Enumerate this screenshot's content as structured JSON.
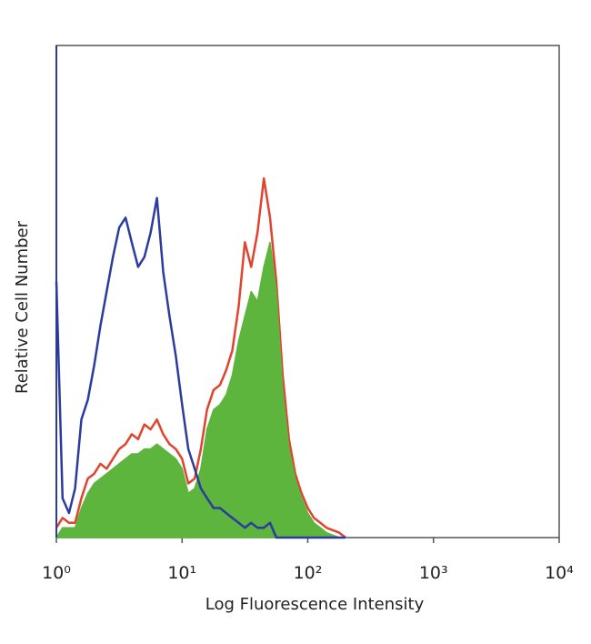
{
  "chart_data": {
    "type": "line",
    "x_label": "Log Fluorescence Intensity",
    "y_label": "Relative Cell Number",
    "xscale": "log",
    "xlim": [
      1,
      10000
    ],
    "ylim": [
      0,
      100
    ],
    "xticks": [
      {
        "value": 1,
        "label": "10⁰"
      },
      {
        "value": 10,
        "label": "10¹"
      },
      {
        "value": 100,
        "label": "10²"
      },
      {
        "value": 1000,
        "label": "10³"
      },
      {
        "value": 10000,
        "label": "10⁴"
      }
    ],
    "x": [
      1,
      1.12,
      1.26,
      1.41,
      1.58,
      1.78,
      2,
      2.24,
      2.51,
      2.82,
      3.16,
      3.55,
      3.98,
      4.47,
      5.01,
      5.62,
      6.31,
      7.08,
      7.94,
      8.91,
      10,
      11.2,
      12.6,
      14.1,
      15.8,
      17.8,
      20,
      22.4,
      25.1,
      28.2,
      31.6,
      35.5,
      39.8,
      44.7,
      50.1,
      56.2,
      63.1,
      70.8,
      79.4,
      89.1,
      100,
      112,
      126,
      141,
      158,
      178,
      200
    ],
    "series": [
      {
        "color": "#e0442e",
        "fill": false,
        "values": [
          2,
          4,
          3,
          3,
          8,
          12,
          13,
          15,
          14,
          16,
          18,
          19,
          21,
          20,
          23,
          22,
          24,
          21,
          19,
          18,
          16,
          11,
          12,
          18,
          26,
          30,
          31,
          34,
          38,
          47,
          60,
          55,
          62,
          73,
          65,
          52,
          33,
          20,
          13,
          9,
          6,
          4,
          3,
          2,
          1.5,
          1,
          0
        ]
      },
      {
        "color": "#5db53e",
        "fill": true,
        "values": [
          0,
          2,
          2,
          2,
          6,
          9,
          11,
          12,
          13,
          14,
          15,
          16,
          17,
          17,
          18,
          18,
          19,
          18,
          17,
          16,
          14,
          9,
          10,
          14,
          22,
          26,
          27,
          29,
          33,
          40,
          45,
          50,
          48,
          55,
          60,
          50,
          30,
          18,
          12,
          8,
          5,
          3,
          2,
          1,
          0.5,
          0,
          0
        ]
      },
      {
        "color": "#2b3c9e",
        "fill": false,
        "values": [
          52,
          8,
          5,
          10,
          24,
          28,
          35,
          43,
          50,
          57,
          63,
          65,
          60,
          55,
          57,
          62,
          69,
          54,
          45,
          37,
          27,
          18,
          14,
          10,
          8,
          6,
          6,
          5,
          4,
          3,
          2,
          3,
          2,
          2,
          3,
          0,
          0,
          0,
          0,
          0,
          0,
          0,
          0,
          0,
          0,
          0,
          0
        ]
      }
    ]
  }
}
